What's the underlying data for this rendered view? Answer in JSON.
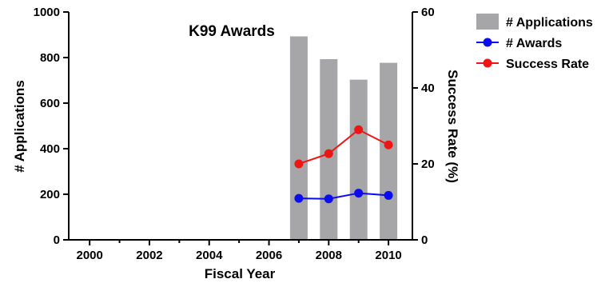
{
  "chart_data": {
    "type": "bar+line",
    "title": "K99 Awards",
    "xlabel": "Fiscal Year",
    "ylabel_left": "# Applications",
    "ylabel_right": "Success Rate (%)",
    "x": [
      2007,
      2008,
      2009,
      2010
    ],
    "xlim": [
      1999.3,
      2010.8
    ],
    "xticks": [
      "2000",
      "2002",
      "2004",
      "2006",
      "2008",
      "2010"
    ],
    "ylim_left": [
      0,
      1000
    ],
    "yticks_left": [
      "0",
      "200",
      "400",
      "600",
      "800",
      "1000"
    ],
    "ylim_right": [
      0,
      60
    ],
    "yticks_right": [
      "0",
      "20",
      "40",
      "60"
    ],
    "grid": false,
    "legend_position": "outside-right-top",
    "series": [
      {
        "name": "# Applications",
        "kind": "bar",
        "axis": "left",
        "color": "#a6a6a8",
        "values": [
          893,
          793,
          703,
          777
        ]
      },
      {
        "name": "# Awards",
        "kind": "line",
        "axis": "left",
        "color": "#0b0bf2",
        "values": [
          182,
          180,
          205,
          195
        ]
      },
      {
        "name": "Success Rate",
        "kind": "line",
        "axis": "right",
        "color": "#ee1515",
        "values": [
          20.0,
          22.7,
          29.0,
          25.0
        ]
      }
    ]
  }
}
